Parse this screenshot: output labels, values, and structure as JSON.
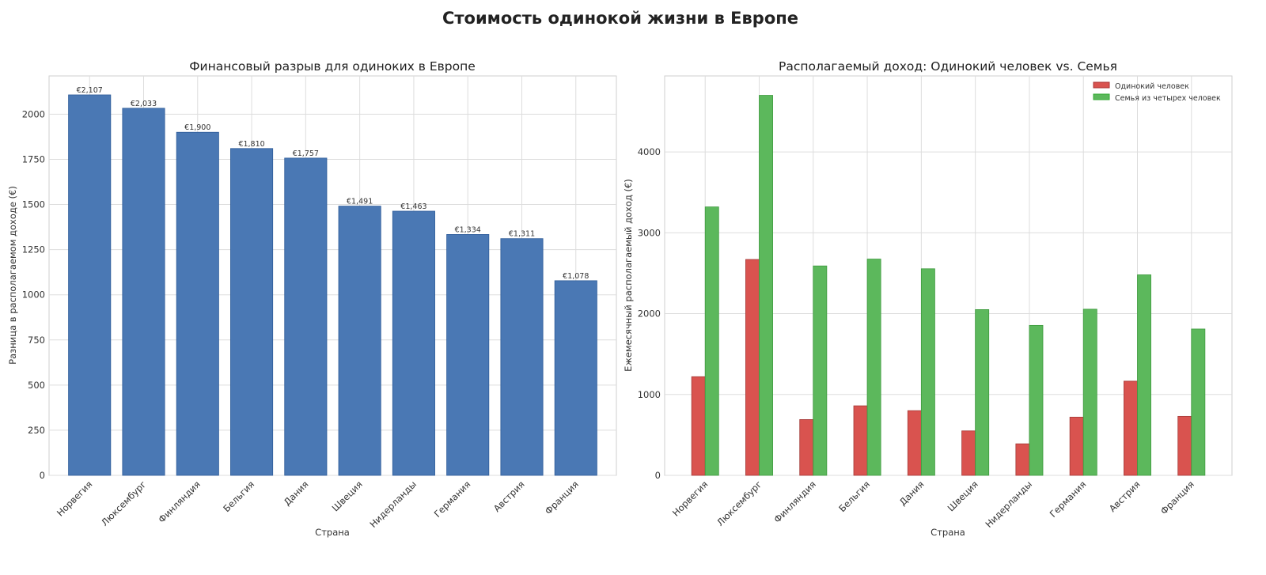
{
  "figure": {
    "title": "Стоимость одинокой жизни в Европе"
  },
  "chart_data": [
    {
      "type": "bar",
      "title": "Финансовый разрыв для одиноких в Европе",
      "xlabel": "Страна",
      "ylabel": "Разница в располагаемом доходе (€)",
      "categories": [
        "Норвегия",
        "Люксембург",
        "Финляндия",
        "Бельгия",
        "Дания",
        "Швеция",
        "Нидерланды",
        "Германия",
        "Австрия",
        "Франция"
      ],
      "series": [
        {
          "values": [
            2107,
            2033,
            1900,
            1810,
            1757,
            1491,
            1463,
            1334,
            1311,
            1078
          ],
          "color": "#4a78b4"
        }
      ],
      "data_labels": [
        "€2,107",
        "€2,033",
        "€1,900",
        "€1,810",
        "€1,757",
        "€1,491",
        "€1,463",
        "€1,334",
        "€1,311",
        "€1,078"
      ],
      "ylim": [
        0,
        2212
      ],
      "yticks": [
        0,
        250,
        500,
        750,
        1000,
        1250,
        1500,
        1750,
        2000
      ],
      "grid": true
    },
    {
      "type": "bar",
      "title": "Располагаемый доход: Одинокий человек vs. Семья",
      "xlabel": "Страна",
      "ylabel": "Ежемесячный располагаемый доход (€)",
      "categories": [
        "Норвегия",
        "Люксембург",
        "Финляндия",
        "Бельгия",
        "Дания",
        "Швеция",
        "Нидерланды",
        "Германия",
        "Австрия",
        "Франция"
      ],
      "series": [
        {
          "name": "Одинокий человек",
          "values": [
            1220,
            2670,
            690,
            860,
            800,
            550,
            390,
            720,
            1165,
            730
          ],
          "color": "#d9534f"
        },
        {
          "name": "Семья из четырех человек",
          "values": [
            3320,
            4700,
            2590,
            2675,
            2555,
            2050,
            1855,
            2055,
            2480,
            1810
          ],
          "color": "#5cb85c"
        }
      ],
      "ylim": [
        0,
        4940
      ],
      "yticks": [
        0,
        1000,
        2000,
        3000,
        4000
      ],
      "legend": "top-right",
      "grid": true
    }
  ]
}
